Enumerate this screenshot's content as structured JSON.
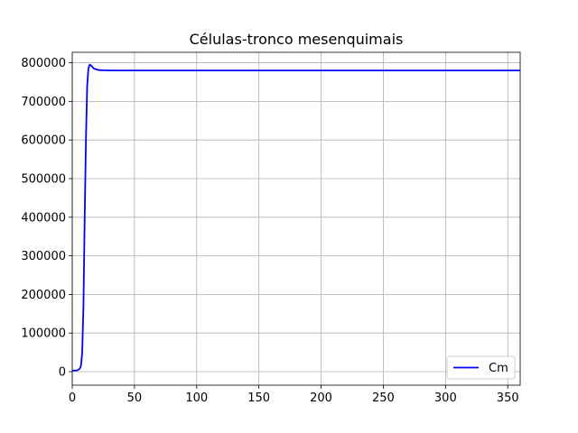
{
  "chart_data": {
    "type": "line",
    "title": "Células-tronco mesenquimais",
    "xlabel": "",
    "ylabel": "",
    "xlim": [
      0,
      360
    ],
    "ylim": [
      -35000,
      827000
    ],
    "xticks": [
      0,
      50,
      100,
      150,
      200,
      250,
      300,
      350
    ],
    "yticks": [
      0,
      100000,
      200000,
      300000,
      400000,
      500000,
      600000,
      700000,
      800000
    ],
    "grid": true,
    "legend_position": "lower-right",
    "series": [
      {
        "name": "Cm",
        "color": "#0000ff",
        "x": [
          0,
          2,
          4,
          5,
          6,
          7,
          8,
          9,
          10,
          11,
          12,
          13,
          14,
          15,
          16,
          17,
          18,
          20,
          22,
          25,
          30,
          40,
          60,
          100,
          200,
          300,
          360
        ],
        "y": [
          3000,
          3000,
          3500,
          5000,
          8000,
          15000,
          50000,
          170000,
          400000,
          600000,
          740000,
          785000,
          795000,
          793000,
          790000,
          786000,
          784000,
          782000,
          781000,
          780500,
          780000,
          780000,
          780000,
          780000,
          780000,
          780000,
          780000
        ]
      }
    ]
  }
}
